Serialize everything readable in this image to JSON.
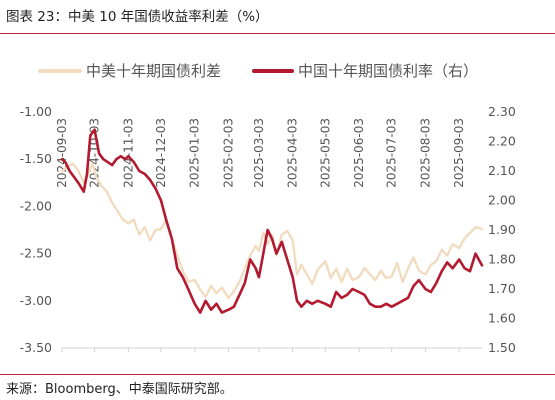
{
  "header": {
    "title": "图表 23：中美 10 年国债收益率利差（%）"
  },
  "footer": {
    "source": "来源：Bloomberg、中泰国际研究部。"
  },
  "chart_data": {
    "type": "line",
    "title": "图表 23：中美 10 年国债收益率利差（%）",
    "legend_position": "top",
    "grid": false,
    "x_range": [
      "2024-09-03",
      "2025-09-24"
    ],
    "x_ticks": [
      "2024-09-03",
      "2024-10-03",
      "2024-11-03",
      "2024-12-03",
      "2025-01-03",
      "2025-02-03",
      "2025-03-03",
      "2025-04-03",
      "2025-05-03",
      "2025-06-03",
      "2025-07-03",
      "2025-08-03",
      "2025-09-03"
    ],
    "y_left": {
      "min": -3.5,
      "max": -1.0,
      "ticks": [
        "-1.00",
        "-1.50",
        "-2.00",
        "-2.50",
        "-3.00",
        "-3.50"
      ]
    },
    "y_right": {
      "min": 1.5,
      "max": 2.3,
      "ticks": [
        "2.30",
        "2.20",
        "2.10",
        "2.00",
        "1.90",
        "1.80",
        "1.70",
        "1.60",
        "1.50"
      ]
    },
    "series": [
      {
        "name": "中美十年期国债利差",
        "axis": "left",
        "color": "#f1dcc0",
        "points": [
          [
            "2024-09-03",
            -1.63
          ],
          [
            "2024-09-08",
            -1.58
          ],
          [
            "2024-09-13",
            -1.55
          ],
          [
            "2024-09-18",
            -1.62
          ],
          [
            "2024-09-23",
            -1.75
          ],
          [
            "2024-09-27",
            -1.66
          ],
          [
            "2024-10-01",
            -1.55
          ],
          [
            "2024-10-05",
            -1.7
          ],
          [
            "2024-10-09",
            -1.78
          ],
          [
            "2024-10-14",
            -1.84
          ],
          [
            "2024-10-19",
            -1.96
          ],
          [
            "2024-10-24",
            -2.05
          ],
          [
            "2024-10-29",
            -2.14
          ],
          [
            "2024-11-03",
            -2.18
          ],
          [
            "2024-11-08",
            -2.14
          ],
          [
            "2024-11-13",
            -2.3
          ],
          [
            "2024-11-18",
            -2.22
          ],
          [
            "2024-11-23",
            -2.36
          ],
          [
            "2024-11-28",
            -2.25
          ],
          [
            "2024-12-03",
            -2.24
          ],
          [
            "2024-12-08",
            -2.14
          ],
          [
            "2024-12-13",
            -2.35
          ],
          [
            "2024-12-18",
            -2.52
          ],
          [
            "2024-12-23",
            -2.68
          ],
          [
            "2024-12-28",
            -2.8
          ],
          [
            "2025-01-03",
            -2.78
          ],
          [
            "2025-01-08",
            -2.88
          ],
          [
            "2025-01-13",
            -2.96
          ],
          [
            "2025-01-18",
            -2.84
          ],
          [
            "2025-01-23",
            -2.92
          ],
          [
            "2025-01-28",
            -2.86
          ],
          [
            "2025-02-03",
            -2.97
          ],
          [
            "2025-02-08",
            -2.9
          ],
          [
            "2025-02-13",
            -2.8
          ],
          [
            "2025-02-18",
            -2.66
          ],
          [
            "2025-02-23",
            -2.52
          ],
          [
            "2025-02-28",
            -2.42
          ],
          [
            "2025-03-03",
            -2.47
          ],
          [
            "2025-03-07",
            -2.28
          ],
          [
            "2025-03-11",
            -2.4
          ],
          [
            "2025-03-15",
            -2.3
          ],
          [
            "2025-03-19",
            -2.52
          ],
          [
            "2025-03-24",
            -2.3
          ],
          [
            "2025-03-29",
            -2.26
          ],
          [
            "2025-04-03",
            -2.36
          ],
          [
            "2025-04-07",
            -2.72
          ],
          [
            "2025-04-11",
            -2.62
          ],
          [
            "2025-04-16",
            -2.72
          ],
          [
            "2025-04-21",
            -2.82
          ],
          [
            "2025-04-26",
            -2.67
          ],
          [
            "2025-05-03",
            -2.58
          ],
          [
            "2025-05-08",
            -2.76
          ],
          [
            "2025-05-13",
            -2.66
          ],
          [
            "2025-05-18",
            -2.8
          ],
          [
            "2025-05-23",
            -2.66
          ],
          [
            "2025-05-28",
            -2.78
          ],
          [
            "2025-06-03",
            -2.75
          ],
          [
            "2025-06-08",
            -2.65
          ],
          [
            "2025-06-13",
            -2.72
          ],
          [
            "2025-06-18",
            -2.78
          ],
          [
            "2025-06-23",
            -2.68
          ],
          [
            "2025-06-28",
            -2.76
          ],
          [
            "2025-07-03",
            -2.74
          ],
          [
            "2025-07-08",
            -2.6
          ],
          [
            "2025-07-13",
            -2.8
          ],
          [
            "2025-07-18",
            -2.66
          ],
          [
            "2025-07-23",
            -2.54
          ],
          [
            "2025-07-28",
            -2.68
          ],
          [
            "2025-08-03",
            -2.72
          ],
          [
            "2025-08-08",
            -2.62
          ],
          [
            "2025-08-13",
            -2.58
          ],
          [
            "2025-08-18",
            -2.46
          ],
          [
            "2025-08-23",
            -2.52
          ],
          [
            "2025-08-28",
            -2.4
          ],
          [
            "2025-09-03",
            -2.44
          ],
          [
            "2025-09-08",
            -2.34
          ],
          [
            "2025-09-13",
            -2.28
          ],
          [
            "2025-09-18",
            -2.22
          ],
          [
            "2025-09-24",
            -2.24
          ]
        ]
      },
      {
        "name": "中国十年期国债利率（右）",
        "axis": "right",
        "color": "#b3192f",
        "points": [
          [
            "2024-09-03",
            2.14
          ],
          [
            "2024-09-06",
            2.13
          ],
          [
            "2024-09-10",
            2.1
          ],
          [
            "2024-09-14",
            2.08
          ],
          [
            "2024-09-18",
            2.06
          ],
          [
            "2024-09-23",
            2.03
          ],
          [
            "2024-09-26",
            2.09
          ],
          [
            "2024-09-29",
            2.22
          ],
          [
            "2024-10-03",
            2.24
          ],
          [
            "2024-10-07",
            2.16
          ],
          [
            "2024-10-11",
            2.14
          ],
          [
            "2024-10-15",
            2.13
          ],
          [
            "2024-10-19",
            2.12
          ],
          [
            "2024-10-23",
            2.14
          ],
          [
            "2024-10-27",
            2.15
          ],
          [
            "2024-10-31",
            2.14
          ],
          [
            "2024-11-03",
            2.15
          ],
          [
            "2024-11-08",
            2.13
          ],
          [
            "2024-11-13",
            2.1
          ],
          [
            "2024-11-18",
            2.09
          ],
          [
            "2024-11-23",
            2.07
          ],
          [
            "2024-11-28",
            2.04
          ],
          [
            "2024-12-03",
            2.0
          ],
          [
            "2024-12-08",
            1.93
          ],
          [
            "2024-12-13",
            1.87
          ],
          [
            "2024-12-18",
            1.77
          ],
          [
            "2024-12-23",
            1.74
          ],
          [
            "2024-12-28",
            1.7
          ],
          [
            "2025-01-03",
            1.65
          ],
          [
            "2025-01-08",
            1.62
          ],
          [
            "2025-01-13",
            1.66
          ],
          [
            "2025-01-18",
            1.63
          ],
          [
            "2025-01-23",
            1.65
          ],
          [
            "2025-01-28",
            1.62
          ],
          [
            "2025-02-03",
            1.63
          ],
          [
            "2025-02-08",
            1.64
          ],
          [
            "2025-02-13",
            1.68
          ],
          [
            "2025-02-18",
            1.72
          ],
          [
            "2025-02-23",
            1.8
          ],
          [
            "2025-02-28",
            1.77
          ],
          [
            "2025-03-03",
            1.74
          ],
          [
            "2025-03-07",
            1.82
          ],
          [
            "2025-03-11",
            1.9
          ],
          [
            "2025-03-15",
            1.87
          ],
          [
            "2025-03-19",
            1.82
          ],
          [
            "2025-03-24",
            1.86
          ],
          [
            "2025-03-29",
            1.8
          ],
          [
            "2025-04-03",
            1.74
          ],
          [
            "2025-04-07",
            1.66
          ],
          [
            "2025-04-11",
            1.64
          ],
          [
            "2025-04-16",
            1.66
          ],
          [
            "2025-04-21",
            1.65
          ],
          [
            "2025-04-26",
            1.66
          ],
          [
            "2025-05-03",
            1.65
          ],
          [
            "2025-05-08",
            1.64
          ],
          [
            "2025-05-13",
            1.69
          ],
          [
            "2025-05-18",
            1.67
          ],
          [
            "2025-05-23",
            1.68
          ],
          [
            "2025-05-28",
            1.7
          ],
          [
            "2025-06-03",
            1.69
          ],
          [
            "2025-06-08",
            1.68
          ],
          [
            "2025-06-13",
            1.65
          ],
          [
            "2025-06-18",
            1.64
          ],
          [
            "2025-06-23",
            1.64
          ],
          [
            "2025-06-28",
            1.65
          ],
          [
            "2025-07-03",
            1.64
          ],
          [
            "2025-07-08",
            1.65
          ],
          [
            "2025-07-13",
            1.66
          ],
          [
            "2025-07-18",
            1.67
          ],
          [
            "2025-07-23",
            1.71
          ],
          [
            "2025-07-28",
            1.73
          ],
          [
            "2025-08-03",
            1.7
          ],
          [
            "2025-08-08",
            1.69
          ],
          [
            "2025-08-13",
            1.72
          ],
          [
            "2025-08-18",
            1.76
          ],
          [
            "2025-08-23",
            1.79
          ],
          [
            "2025-08-28",
            1.77
          ],
          [
            "2025-09-03",
            1.8
          ],
          [
            "2025-09-08",
            1.77
          ],
          [
            "2025-09-13",
            1.76
          ],
          [
            "2025-09-18",
            1.82
          ],
          [
            "2025-09-24",
            1.78
          ]
        ]
      }
    ]
  }
}
